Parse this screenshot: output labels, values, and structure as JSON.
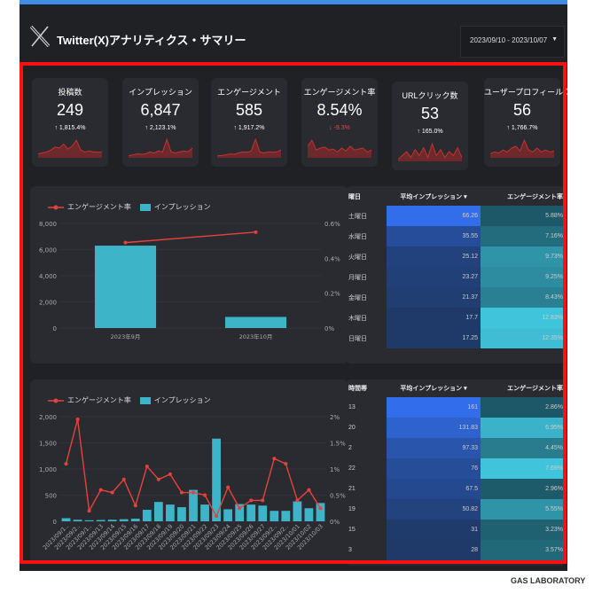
{
  "header": {
    "title": "Twitter(X)アナリティクス・サマリー",
    "date_range": "2023/09/10 - 2023/10/07"
  },
  "cards": [
    {
      "label": "投稿数",
      "value": "249",
      "delta": "↑ 1,815.4%",
      "delta_color": "#ffffff",
      "spark": [
        0.2,
        0.25,
        0.3,
        0.4,
        0.55,
        0.5,
        0.7,
        0.45,
        0.6,
        0.9,
        0.4,
        0.3,
        0.35,
        0.3,
        0.28,
        0.3
      ]
    },
    {
      "label": "インプレッション",
      "value": "6,847",
      "delta": "↑ 2,123.1%",
      "delta_color": "#ffffff",
      "spark": [
        0.1,
        0.15,
        0.2,
        0.18,
        0.2,
        0.3,
        0.25,
        0.35,
        0.3,
        0.95,
        0.3,
        0.25,
        0.3,
        0.35,
        0.3,
        0.5
      ]
    },
    {
      "label": "エンゲージメント",
      "value": "585",
      "delta": "↑ 1,917.2%",
      "delta_color": "#ffffff",
      "spark": [
        0.1,
        0.12,
        0.15,
        0.2,
        0.18,
        0.25,
        0.3,
        0.28,
        0.35,
        0.95,
        0.3,
        0.25,
        0.3,
        0.28,
        0.3,
        0.4
      ]
    },
    {
      "label": "エンゲージメント率",
      "value": "8.54%",
      "delta": "↓ -9.3%",
      "delta_color": "#e24a4a",
      "spark": [
        0.6,
        0.9,
        0.4,
        0.5,
        0.55,
        0.4,
        0.45,
        0.3,
        0.5,
        0.35,
        0.6,
        0.4,
        0.45,
        0.5,
        0.3,
        0.4
      ]
    },
    {
      "label": "URLクリック数",
      "value": "53",
      "delta": "↑ 165.0%",
      "delta_color": "#ffffff",
      "spark": [
        0.1,
        0.3,
        0.5,
        0.2,
        0.6,
        0.3,
        0.7,
        0.2,
        0.9,
        0.3,
        0.6,
        0.2,
        0.5,
        0.3,
        0.7,
        0.2
      ]
    },
    {
      "label": "ユーザープロフィールクリック",
      "value": "56",
      "delta": "↑ 1,766.7%",
      "delta_color": "#ffffff",
      "spark": [
        0.2,
        0.3,
        0.25,
        0.4,
        0.3,
        0.5,
        0.6,
        0.35,
        0.9,
        0.4,
        0.3,
        0.5,
        0.3,
        0.4,
        0.3,
        0.35
      ]
    }
  ],
  "legend": {
    "engagement_rate": "エンゲージメント率",
    "impressions": "インプレッション"
  },
  "monthly_chart": {
    "type": "bar",
    "categories": [
      "2023年9月",
      "2023年10月"
    ],
    "series": [
      {
        "name": "インプレッション",
        "values": [
          6300,
          850
        ]
      },
      {
        "name": "エンゲージメント率",
        "values": [
          0.49,
          0.55
        ]
      }
    ],
    "y_ticks_left": [
      "8,000",
      "6,000",
      "4,000",
      "2,000",
      "0"
    ],
    "y_ticks_right": [
      "0.6%",
      "0.4%",
      "0.2%",
      "0%"
    ],
    "ylim_left": [
      0,
      8000
    ],
    "ylim_right": [
      0,
      0.6
    ]
  },
  "daily_chart": {
    "type": "bar",
    "categories": [
      "2023/09/1..",
      "2023/09/2..",
      "2023/09/1..",
      "2023/09/13",
      "2023/09/14",
      "2023/09/15",
      "2023/09/16",
      "2023/09/17",
      "2023/09/18",
      "2023/09/19",
      "2023/09/20",
      "2023/09/21",
      "2023/09/22",
      "2023/09/23",
      "2023/09/24",
      "2023/09/25",
      "2023/09/26",
      "2023/09/27",
      "2023/09/2..",
      "2023/09/2..",
      "2023/10/01",
      "2023/10/02",
      "2023/10/03"
    ],
    "series": [
      {
        "name": "インプレッション",
        "values": [
          60,
          30,
          20,
          25,
          30,
          40,
          50,
          220,
          370,
          320,
          270,
          600,
          320,
          1580,
          230,
          330,
          320,
          300,
          200,
          200,
          380,
          250,
          350
        ]
      },
      {
        "name": "エンゲージメント率",
        "values": [
          1.1,
          1.95,
          0.2,
          0.6,
          0.55,
          0.8,
          0.3,
          1.05,
          0.8,
          0.9,
          0.55,
          0.55,
          0.5,
          0.1,
          0.65,
          0.25,
          0.4,
          0.4,
          1.2,
          1.1,
          0.4,
          0.6,
          0.25
        ]
      }
    ],
    "y_ticks_left": [
      "2,000",
      "1,500",
      "1,000",
      "500",
      "0"
    ],
    "y_ticks_right": [
      "2%",
      "1.5%",
      "1%",
      "0.5%",
      "0%"
    ],
    "ylim_left": [
      0,
      2000
    ],
    "ylim_right": [
      0,
      2
    ]
  },
  "weekday_table": {
    "headers": [
      "曜日",
      "平均インプレッション ▾",
      "エンゲージメント率"
    ],
    "rows": [
      {
        "key": "土曜日",
        "impr": "66.26",
        "rate": "5.88%"
      },
      {
        "key": "水曜日",
        "impr": "35.55",
        "rate": "7.16%"
      },
      {
        "key": "火曜日",
        "impr": "25.12",
        "rate": "9.73%"
      },
      {
        "key": "月曜日",
        "impr": "23.27",
        "rate": "9.25%"
      },
      {
        "key": "金曜日",
        "impr": "21.37",
        "rate": "8.43%"
      },
      {
        "key": "木曜日",
        "impr": "17.7",
        "rate": "12.83%"
      },
      {
        "key": "日曜日",
        "impr": "17.25",
        "rate": "12.35%"
      }
    ]
  },
  "hour_table": {
    "headers": [
      "時間帯",
      "平均インプレッション ▾",
      "エンゲージメント率"
    ],
    "rows": [
      {
        "key": "13",
        "impr": "161",
        "rate": "2.86%"
      },
      {
        "key": "20",
        "impr": "131.83",
        "rate": "6.95%"
      },
      {
        "key": "2",
        "impr": "97.33",
        "rate": "4.45%"
      },
      {
        "key": "22",
        "impr": "76",
        "rate": "7.69%"
      },
      {
        "key": "21",
        "impr": "67.5",
        "rate": "2.96%"
      },
      {
        "key": "19",
        "impr": "50.82",
        "rate": "5.55%"
      },
      {
        "key": "15",
        "impr": "31",
        "rate": "3.23%"
      },
      {
        "key": "3",
        "impr": "28",
        "rate": "3.57%"
      }
    ]
  },
  "footer": {
    "brand": "GAS LABORATORY"
  },
  "colors": {
    "accent_blue": "#3f8ce6",
    "bar": "#3db4c8",
    "line": "#e8413c",
    "frame": "#ff1010"
  }
}
